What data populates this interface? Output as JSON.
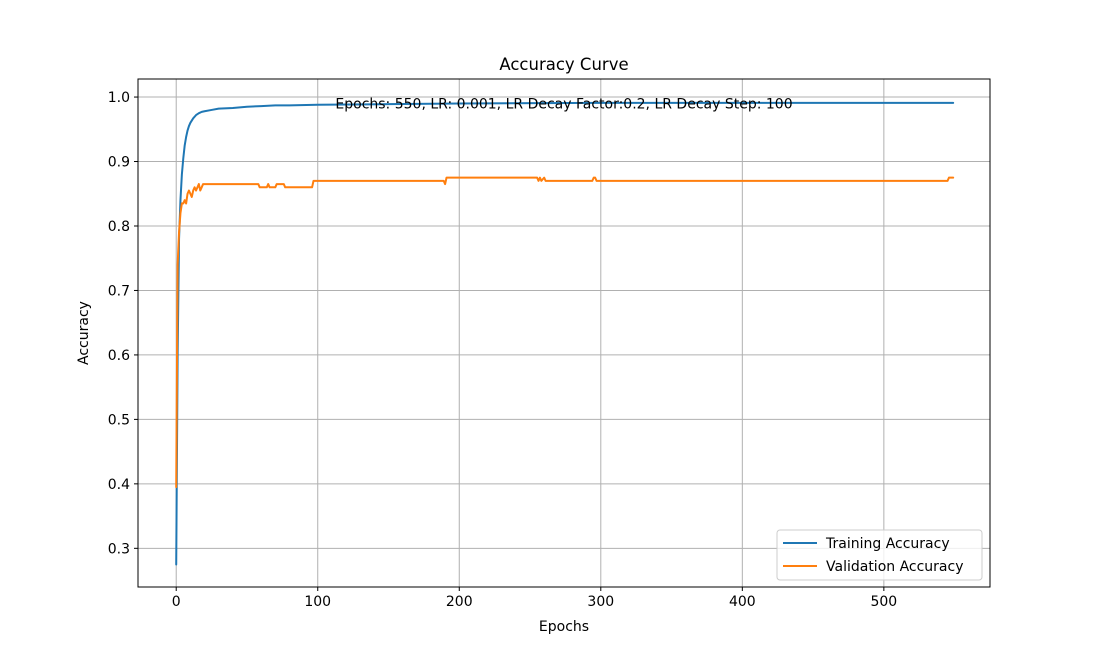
{
  "chart_data": {
    "type": "line",
    "title": "Accuracy Curve",
    "xlabel": "Epochs",
    "ylabel": "Accuracy",
    "xlim": [
      -27,
      575
    ],
    "ylim": [
      0.24,
      1.028
    ],
    "xticks": [
      0,
      100,
      200,
      300,
      400,
      500
    ],
    "yticks": [
      0.3,
      0.4,
      0.5,
      0.6,
      0.7,
      0.8,
      0.9,
      1.0
    ],
    "grid": true,
    "legend_position": "lower right",
    "annotation": "Epochs: 550, LR: 0.001, LR Decay Factor:0.2, LR Decay Step: 100",
    "series": [
      {
        "name": "Training Accuracy",
        "color": "#1f77b4",
        "x": [
          0,
          1,
          2,
          3,
          4,
          5,
          6,
          7,
          8,
          9,
          10,
          12,
          14,
          16,
          18,
          20,
          25,
          30,
          40,
          50,
          60,
          70,
          80,
          100,
          150,
          200,
          300,
          400,
          549
        ],
        "y": [
          0.275,
          0.6,
          0.78,
          0.84,
          0.88,
          0.905,
          0.925,
          0.938,
          0.948,
          0.955,
          0.96,
          0.967,
          0.972,
          0.975,
          0.977,
          0.978,
          0.98,
          0.982,
          0.983,
          0.985,
          0.986,
          0.987,
          0.987,
          0.988,
          0.989,
          0.99,
          0.991,
          0.991,
          0.991
        ]
      },
      {
        "name": "Validation Accuracy",
        "color": "#ff7f0e",
        "x": [
          0,
          1,
          2,
          3,
          4,
          5,
          6,
          7,
          8,
          9,
          10,
          11,
          12,
          13,
          14,
          15,
          16,
          17,
          18,
          19,
          20,
          21,
          22,
          58,
          59,
          64,
          65,
          66,
          70,
          71,
          76,
          77,
          80,
          81,
          96,
          97,
          189,
          190,
          191,
          192,
          255,
          256,
          257,
          258,
          260,
          261,
          262,
          263,
          294,
          295,
          296,
          297,
          545,
          546,
          549
        ],
        "y": [
          0.395,
          0.74,
          0.79,
          0.82,
          0.835,
          0.835,
          0.84,
          0.835,
          0.85,
          0.855,
          0.85,
          0.845,
          0.855,
          0.86,
          0.855,
          0.86,
          0.865,
          0.855,
          0.86,
          0.865,
          0.865,
          0.865,
          0.865,
          0.865,
          0.86,
          0.86,
          0.865,
          0.86,
          0.86,
          0.865,
          0.865,
          0.86,
          0.86,
          0.86,
          0.86,
          0.87,
          0.87,
          0.865,
          0.875,
          0.875,
          0.875,
          0.87,
          0.875,
          0.87,
          0.875,
          0.87,
          0.87,
          0.87,
          0.87,
          0.875,
          0.875,
          0.87,
          0.87,
          0.875,
          0.875
        ]
      }
    ]
  }
}
